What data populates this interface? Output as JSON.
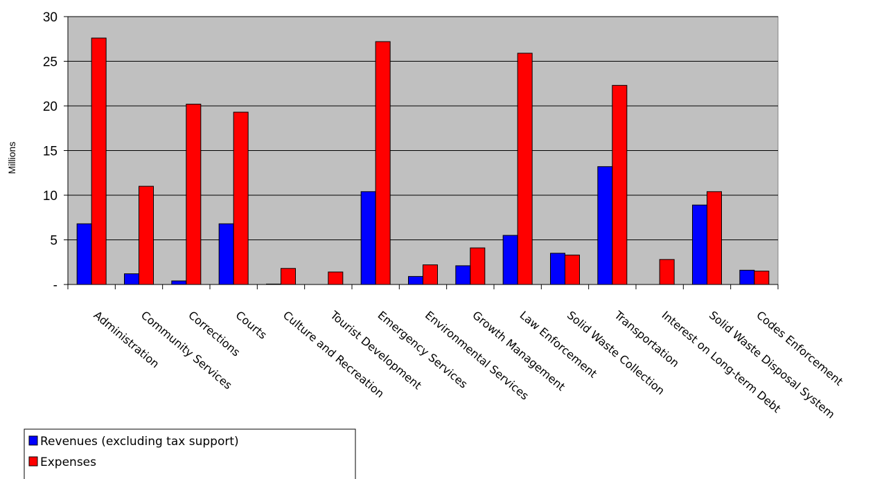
{
  "chart_data": {
    "type": "bar",
    "title": "",
    "xlabel": "",
    "ylabel": "Millions",
    "ylim": [
      0,
      30
    ],
    "yticks": [
      0,
      5,
      10,
      15,
      20,
      25,
      30
    ],
    "ytick_labels": [
      "-",
      "5",
      "10",
      "15",
      "20",
      "25",
      "30"
    ],
    "grid": true,
    "legend_position": "bottom-left",
    "plot_background": "#C0C0C0",
    "categories": [
      "Administration",
      "Community Services",
      "Corrections",
      "Courts",
      "Culture and Recreation",
      "Tourist Development",
      "Emergency Services",
      "Environmental Services",
      "Growth Management",
      "Law Enforcement",
      "Solid Waste Collection",
      "Transportation",
      "Interest on Long-term Debt",
      "Solid Waste Disposal System",
      "Codes Enforcement"
    ],
    "series": [
      {
        "name": "Revenues (excluding tax support)",
        "color": "#0000FF",
        "values": [
          6.8,
          1.2,
          0.4,
          6.8,
          0.05,
          0,
          10.4,
          0.9,
          2.1,
          5.5,
          3.5,
          13.2,
          0,
          8.9,
          1.6
        ]
      },
      {
        "name": "Expenses",
        "color": "#FF0000",
        "values": [
          27.6,
          11.0,
          20.2,
          19.3,
          1.8,
          1.4,
          27.2,
          2.2,
          4.1,
          25.9,
          3.3,
          22.3,
          2.8,
          10.4,
          1.5
        ]
      }
    ]
  }
}
